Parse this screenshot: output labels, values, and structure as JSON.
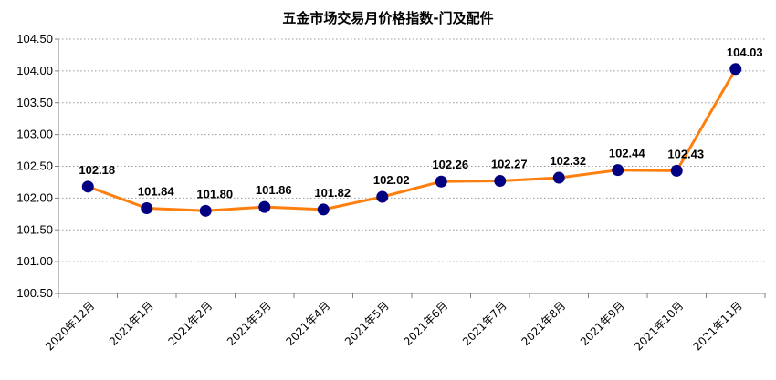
{
  "chart_data": {
    "type": "line",
    "title": "五金市场交易月价格指数-门及配件",
    "categories": [
      "2020年12月",
      "2021年1月",
      "2021年2月",
      "2021年3月",
      "2021年4月",
      "2021年5月",
      "2021年6月",
      "2021年7月",
      "2021年8月",
      "2021年9月",
      "2021年10月",
      "2021年11月"
    ],
    "series": [
      {
        "values": [
          102.18,
          101.84,
          101.8,
          101.86,
          101.82,
          102.02,
          102.26,
          102.27,
          102.32,
          102.44,
          102.43,
          104.03
        ]
      }
    ],
    "data_labels": [
      "102.18",
      "101.84",
      "101.80",
      "101.86",
      "101.82",
      "102.02",
      "102.26",
      "102.27",
      "102.32",
      "102.44",
      "102.43",
      "104.03"
    ],
    "yticks": [
      "104.50",
      "104.00",
      "103.50",
      "103.00",
      "102.50",
      "102.00",
      "101.50",
      "101.00",
      "100.50"
    ],
    "ylim": [
      100.5,
      104.5
    ],
    "grid": true,
    "legend": false,
    "colors": {
      "line": "#FF7F0E",
      "marker": "#000080"
    }
  }
}
